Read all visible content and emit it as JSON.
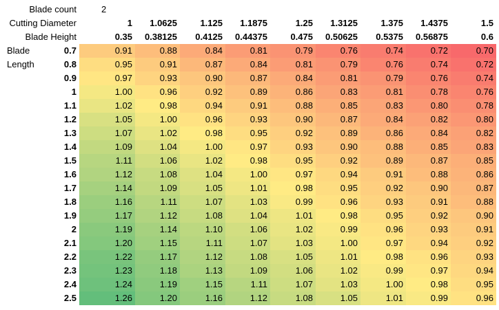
{
  "labels": {
    "blade_count": "Blade count",
    "cutting_diameter": "Cutting Diameter",
    "blade_height": "Blade Height",
    "blade": "Blade",
    "length": "Length"
  },
  "blade_count_value": "2",
  "cutting_diameters": [
    "1",
    "1.0625",
    "1.125",
    "1.1875",
    "1.25",
    "1.3125",
    "1.375",
    "1.4375",
    "1.5"
  ],
  "blade_heights": [
    "0.35",
    "0.38125",
    "0.4125",
    "0.44375",
    "0.475",
    "0.50625",
    "0.5375",
    "0.56875",
    "0.6"
  ],
  "blade_lengths": [
    "0.7",
    "0.8",
    "0.9",
    "1",
    "1.1",
    "1.2",
    "1.3",
    "1.4",
    "1.5",
    "1.6",
    "1.7",
    "1.8",
    "1.9",
    "2",
    "2.1",
    "2.2",
    "2.3",
    "2.4",
    "2.5"
  ],
  "values": [
    [
      "0.91",
      "0.88",
      "0.84",
      "0.81",
      "0.79",
      "0.76",
      "0.74",
      "0.72",
      "0.70"
    ],
    [
      "0.95",
      "0.91",
      "0.87",
      "0.84",
      "0.81",
      "0.79",
      "0.76",
      "0.74",
      "0.72"
    ],
    [
      "0.97",
      "0.93",
      "0.90",
      "0.87",
      "0.84",
      "0.81",
      "0.79",
      "0.76",
      "0.74"
    ],
    [
      "1.00",
      "0.96",
      "0.92",
      "0.89",
      "0.86",
      "0.83",
      "0.81",
      "0.78",
      "0.76"
    ],
    [
      "1.02",
      "0.98",
      "0.94",
      "0.91",
      "0.88",
      "0.85",
      "0.83",
      "0.80",
      "0.78"
    ],
    [
      "1.05",
      "1.00",
      "0.96",
      "0.93",
      "0.90",
      "0.87",
      "0.84",
      "0.82",
      "0.80"
    ],
    [
      "1.07",
      "1.02",
      "0.98",
      "0.95",
      "0.92",
      "0.89",
      "0.86",
      "0.84",
      "0.82"
    ],
    [
      "1.09",
      "1.04",
      "1.00",
      "0.97",
      "0.93",
      "0.90",
      "0.88",
      "0.85",
      "0.83"
    ],
    [
      "1.11",
      "1.06",
      "1.02",
      "0.98",
      "0.95",
      "0.92",
      "0.89",
      "0.87",
      "0.85"
    ],
    [
      "1.12",
      "1.08",
      "1.04",
      "1.00",
      "0.97",
      "0.94",
      "0.91",
      "0.88",
      "0.86"
    ],
    [
      "1.14",
      "1.09",
      "1.05",
      "1.01",
      "0.98",
      "0.95",
      "0.92",
      "0.90",
      "0.87"
    ],
    [
      "1.16",
      "1.11",
      "1.07",
      "1.03",
      "0.99",
      "0.96",
      "0.93",
      "0.91",
      "0.88"
    ],
    [
      "1.17",
      "1.12",
      "1.08",
      "1.04",
      "1.01",
      "0.98",
      "0.95",
      "0.92",
      "0.90"
    ],
    [
      "1.19",
      "1.14",
      "1.10",
      "1.06",
      "1.02",
      "0.99",
      "0.96",
      "0.93",
      "0.91"
    ],
    [
      "1.20",
      "1.15",
      "1.11",
      "1.07",
      "1.03",
      "1.00",
      "0.97",
      "0.94",
      "0.92"
    ],
    [
      "1.22",
      "1.17",
      "1.12",
      "1.08",
      "1.05",
      "1.01",
      "0.98",
      "0.96",
      "0.93"
    ],
    [
      "1.23",
      "1.18",
      "1.13",
      "1.09",
      "1.06",
      "1.02",
      "0.99",
      "0.97",
      "0.94"
    ],
    [
      "1.24",
      "1.19",
      "1.15",
      "1.11",
      "1.07",
      "1.03",
      "1.00",
      "0.98",
      "0.95"
    ],
    [
      "1.26",
      "1.20",
      "1.16",
      "1.12",
      "1.08",
      "1.05",
      "1.01",
      "0.99",
      "0.96"
    ]
  ],
  "color_scale": {
    "low": "#f8696b",
    "mid": "#ffeb84",
    "high": "#63be7b",
    "low_value": 0.7,
    "mid_value": 0.98,
    "high_value": 1.26
  }
}
